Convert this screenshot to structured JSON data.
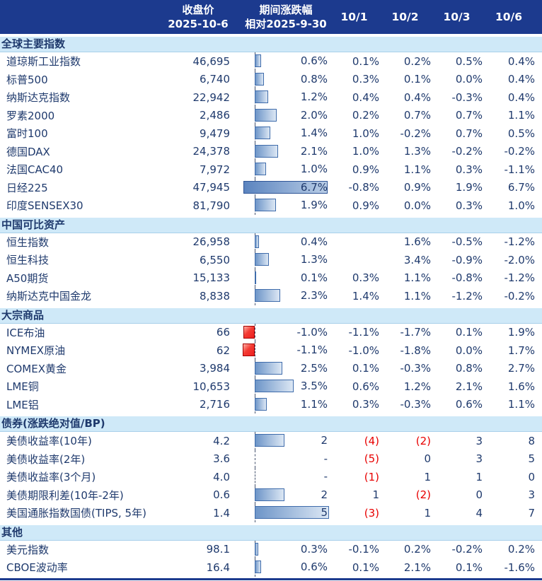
{
  "colors": {
    "header_bg": "#1c3a8e",
    "band_bg": "#cfe9f8",
    "text": "#1f3a6d",
    "negative_red": "#e80000",
    "bar_blue_border": "#3f6cab",
    "bar_red_border": "#a50000",
    "bottom_line": "#1c3a8e"
  },
  "chart_data": {
    "type": "table",
    "columns": {
      "close": {
        "line1": "收盘价",
        "line2": "2025-10-6"
      },
      "change": {
        "line1": "期间涨跌幅",
        "line2": "相对2025-9-30"
      },
      "dates": [
        "10/1",
        "10/2",
        "10/3",
        "10/6"
      ]
    },
    "bar_axis_note": "dashed line = 0; blue bars positive, red bars negative; pct group scaled to max 6.7, bp group scaled to max 5",
    "sections": [
      {
        "title": "全球主要指数",
        "bar_group": "pct",
        "rows": [
          {
            "name": "道琼斯工业指数",
            "close": "46,695",
            "change_value": 0.6,
            "change_label": "0.6%",
            "daily": [
              "0.1%",
              "0.2%",
              "0.5%",
              "0.4%"
            ]
          },
          {
            "name": "标普500",
            "close": "6,740",
            "change_value": 0.8,
            "change_label": "0.8%",
            "daily": [
              "0.3%",
              "0.1%",
              "0.0%",
              "0.4%"
            ]
          },
          {
            "name": "纳斯达克指数",
            "close": "22,942",
            "change_value": 1.2,
            "change_label": "1.2%",
            "daily": [
              "0.4%",
              "0.4%",
              "-0.3%",
              "0.4%"
            ]
          },
          {
            "name": "罗素2000",
            "close": "2,486",
            "change_value": 2.0,
            "change_label": "2.0%",
            "daily": [
              "0.2%",
              "0.7%",
              "0.7%",
              "1.1%"
            ]
          },
          {
            "name": "富时100",
            "close": "9,479",
            "change_value": 1.4,
            "change_label": "1.4%",
            "daily": [
              "1.0%",
              "-0.2%",
              "0.7%",
              "0.5%"
            ]
          },
          {
            "name": "德国DAX",
            "close": "24,378",
            "change_value": 2.1,
            "change_label": "2.1%",
            "daily": [
              "1.0%",
              "1.3%",
              "-0.2%",
              "-0.2%"
            ]
          },
          {
            "name": "法国CAC40",
            "close": "7,972",
            "change_value": 1.0,
            "change_label": "1.0%",
            "daily": [
              "0.9%",
              "1.1%",
              "0.3%",
              "-1.1%"
            ]
          },
          {
            "name": "日经225",
            "close": "47,945",
            "change_value": 6.7,
            "change_label": "6.7%",
            "daily": [
              "-0.8%",
              "0.9%",
              "1.9%",
              "6.7%"
            ]
          },
          {
            "name": "印度SENSEX30",
            "close": "81,790",
            "change_value": 1.9,
            "change_label": "1.9%",
            "daily": [
              "0.9%",
              "0.0%",
              "0.3%",
              "1.0%"
            ]
          }
        ]
      },
      {
        "title": "中国可比资产",
        "bar_group": "pct",
        "rows": [
          {
            "name": "恒生指数",
            "close": "26,958",
            "change_value": 0.4,
            "change_label": "0.4%",
            "daily": [
              "",
              "1.6%",
              "-0.5%",
              "-1.2%"
            ]
          },
          {
            "name": "恒生科技",
            "close": "6,550",
            "change_value": 1.3,
            "change_label": "1.3%",
            "daily": [
              "",
              "3.4%",
              "-0.9%",
              "-2.0%"
            ]
          },
          {
            "name": "A50期货",
            "close": "15,133",
            "change_value": 0.1,
            "change_label": "0.1%",
            "daily": [
              "0.3%",
              "1.1%",
              "-0.8%",
              "-1.2%"
            ]
          },
          {
            "name": "纳斯达克中国金龙",
            "close": "8,838",
            "change_value": 2.3,
            "change_label": "2.3%",
            "daily": [
              "1.4%",
              "1.1%",
              "-1.2%",
              "-0.2%"
            ]
          }
        ]
      },
      {
        "title": "大宗商品",
        "bar_group": "pct",
        "rows": [
          {
            "name": "ICE布油",
            "close": "66",
            "change_value": -1.0,
            "change_label": "-1.0%",
            "daily": [
              "-1.1%",
              "-1.7%",
              "0.1%",
              "1.9%"
            ]
          },
          {
            "name": "NYMEX原油",
            "close": "62",
            "change_value": -1.1,
            "change_label": "-1.1%",
            "daily": [
              "-1.0%",
              "-1.8%",
              "0.0%",
              "1.7%"
            ]
          },
          {
            "name": "COMEX黄金",
            "close": "3,984",
            "change_value": 2.5,
            "change_label": "2.5%",
            "daily": [
              "0.1%",
              "-0.3%",
              "0.8%",
              "2.7%"
            ]
          },
          {
            "name": "LME铜",
            "close": "10,653",
            "change_value": 3.5,
            "change_label": "3.5%",
            "daily": [
              "0.6%",
              "1.2%",
              "2.1%",
              "1.6%"
            ]
          },
          {
            "name": "LME铝",
            "close": "2,716",
            "change_value": 1.1,
            "change_label": "1.1%",
            "daily": [
              "0.3%",
              "-0.3%",
              "0.6%",
              "1.1%"
            ]
          }
        ]
      },
      {
        "title": "债券(涨跌绝对值/BP)",
        "bar_group": "bp",
        "rows": [
          {
            "name": "美债收益率(10年)",
            "close": "4.2",
            "change_value": 2,
            "change_label": "2",
            "daily": [
              "(4)",
              "(2)",
              "3",
              "8"
            ]
          },
          {
            "name": "美债收益率(2年)",
            "close": "3.6",
            "change_value": null,
            "change_label": "-",
            "daily": [
              "(5)",
              "0",
              "3",
              "5"
            ]
          },
          {
            "name": "美债收益率(3个月)",
            "close": "4.0",
            "change_value": null,
            "change_label": "-",
            "daily": [
              "(1)",
              "1",
              "1",
              "0"
            ]
          },
          {
            "name": "美债期限利差(10年-2年)",
            "close": "0.6",
            "change_value": 2,
            "change_label": "2",
            "daily": [
              "1",
              "(2)",
              "0",
              "3"
            ]
          },
          {
            "name": "美国通胀指数国债(TIPS, 5年)",
            "close": "1.4",
            "change_value": 5,
            "change_label": "5",
            "daily": [
              "(3)",
              "1",
              "4",
              "7"
            ]
          }
        ]
      },
      {
        "title": "其他",
        "bar_group": "pct",
        "rows": [
          {
            "name": "美元指数",
            "close": "98.1",
            "change_value": 0.3,
            "change_label": "0.3%",
            "daily": [
              "-0.1%",
              "0.2%",
              "-0.2%",
              "0.2%"
            ]
          },
          {
            "name": "CBOE波动率",
            "close": "16.4",
            "change_value": 0.6,
            "change_label": "0.6%",
            "daily": [
              "0.1%",
              "2.1%",
              "0.1%",
              "-1.6%"
            ]
          }
        ]
      }
    ]
  }
}
